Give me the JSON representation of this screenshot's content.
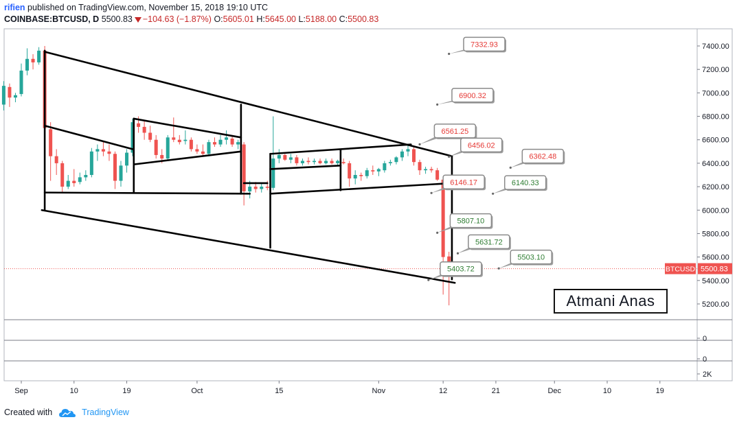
{
  "header": {
    "user": "rifien",
    "published_text": "published on TradingView.com, November 15, 2018 19:10 UTC",
    "symbol": "COINBASE:BTCUSD, D",
    "last": "5500.83",
    "change": "−104.63 (−1.87%)",
    "o_label": "O:",
    "o_value": "5605.01",
    "h_label": "H:",
    "h_value": "5645.00",
    "l_label": "L:",
    "l_value": "5188.00",
    "c_label": "C:",
    "c_value": "5500.83"
  },
  "footer": {
    "created_with": "Created with",
    "brand": "TradingView"
  },
  "watermark": "Atmani Anas",
  "colors": {
    "up": "#26a69a",
    "down": "#ef5350",
    "label_red": "#e53935",
    "label_green": "#2e7d32",
    "price_tag": "#ef5350"
  },
  "chart_data": {
    "type": "candlestick",
    "ylim": [
      5100,
      7500
    ],
    "price_ticks": [
      "5200.00",
      "5400.00",
      "5600.00",
      "5800.00",
      "6000.00",
      "6200.00",
      "6400.00",
      "6600.00",
      "6800.00",
      "7000.00",
      "7200.00",
      "7400.00"
    ],
    "price_tag": {
      "symbol": "BTCUSD",
      "value": "5500.83",
      "price": 5500.83
    },
    "x_ticks": [
      {
        "label": "Sep",
        "day": 0
      },
      {
        "label": "10",
        "day": 9
      },
      {
        "label": "19",
        "day": 18
      },
      {
        "label": "Oct",
        "day": 30
      },
      {
        "label": "15",
        "day": 44
      },
      {
        "label": "Nov",
        "day": 61
      },
      {
        "label": "12",
        "day": 72
      },
      {
        "label": "21",
        "day": 81
      },
      {
        "label": "Dec",
        "day": 91
      },
      {
        "label": "10",
        "day": 100
      },
      {
        "label": "19",
        "day": 109
      }
    ],
    "sub_panel_labels": [
      "0",
      "0",
      "2K"
    ],
    "candles": [
      {
        "day": -3,
        "o": 6900,
        "h": 7100,
        "l": 6850,
        "c": 7060
      },
      {
        "day": -2,
        "o": 7050,
        "h": 7080,
        "l": 6880,
        "c": 6960
      },
      {
        "day": -1,
        "o": 6960,
        "h": 7000,
        "l": 6920,
        "c": 6980
      },
      {
        "day": 0,
        "o": 6990,
        "h": 7250,
        "l": 6970,
        "c": 7190
      },
      {
        "day": 1,
        "o": 7190,
        "h": 7380,
        "l": 7150,
        "c": 7290
      },
      {
        "day": 2,
        "o": 7290,
        "h": 7330,
        "l": 7200,
        "c": 7260
      },
      {
        "day": 3,
        "o": 7260,
        "h": 7390,
        "l": 7240,
        "c": 7360
      },
      {
        "day": 4,
        "o": 7360,
        "h": 7400,
        "l": 6650,
        "c": 6700
      },
      {
        "day": 5,
        "o": 6690,
        "h": 6750,
        "l": 6250,
        "c": 6460
      },
      {
        "day": 6,
        "o": 6460,
        "h": 6520,
        "l": 6300,
        "c": 6400
      },
      {
        "day": 7,
        "o": 6400,
        "h": 6420,
        "l": 6150,
        "c": 6200
      },
      {
        "day": 8,
        "o": 6200,
        "h": 6300,
        "l": 6180,
        "c": 6250
      },
      {
        "day": 9,
        "o": 6250,
        "h": 6350,
        "l": 6200,
        "c": 6230
      },
      {
        "day": 10,
        "o": 6240,
        "h": 6320,
        "l": 6220,
        "c": 6280
      },
      {
        "day": 11,
        "o": 6280,
        "h": 6340,
        "l": 6250,
        "c": 6300
      },
      {
        "day": 12,
        "o": 6300,
        "h": 6530,
        "l": 6280,
        "c": 6500
      },
      {
        "day": 13,
        "o": 6500,
        "h": 6560,
        "l": 6420,
        "c": 6520
      },
      {
        "day": 14,
        "o": 6520,
        "h": 6580,
        "l": 6460,
        "c": 6500
      },
      {
        "day": 15,
        "o": 6500,
        "h": 6560,
        "l": 6420,
        "c": 6480
      },
      {
        "day": 16,
        "o": 6480,
        "h": 6500,
        "l": 6180,
        "c": 6250
      },
      {
        "day": 17,
        "o": 6250,
        "h": 6420,
        "l": 6200,
        "c": 6380
      },
      {
        "day": 18,
        "o": 6380,
        "h": 6520,
        "l": 6320,
        "c": 6490
      },
      {
        "day": 19,
        "o": 6490,
        "h": 6780,
        "l": 6460,
        "c": 6750
      },
      {
        "day": 20,
        "o": 6740,
        "h": 6800,
        "l": 6660,
        "c": 6710
      },
      {
        "day": 21,
        "o": 6710,
        "h": 6760,
        "l": 6600,
        "c": 6660
      },
      {
        "day": 22,
        "o": 6660,
        "h": 6720,
        "l": 6580,
        "c": 6600
      },
      {
        "day": 23,
        "o": 6600,
        "h": 6640,
        "l": 6440,
        "c": 6470
      },
      {
        "day": 24,
        "o": 6470,
        "h": 6520,
        "l": 6400,
        "c": 6440
      },
      {
        "day": 25,
        "o": 6440,
        "h": 6640,
        "l": 6420,
        "c": 6620
      },
      {
        "day": 26,
        "o": 6620,
        "h": 6790,
        "l": 6580,
        "c": 6600
      },
      {
        "day": 27,
        "o": 6600,
        "h": 6640,
        "l": 6560,
        "c": 6580
      },
      {
        "day": 28,
        "o": 6590,
        "h": 6680,
        "l": 6560,
        "c": 6600
      },
      {
        "day": 29,
        "o": 6600,
        "h": 6620,
        "l": 6500,
        "c": 6520
      },
      {
        "day": 30,
        "o": 6520,
        "h": 6560,
        "l": 6480,
        "c": 6500
      },
      {
        "day": 31,
        "o": 6500,
        "h": 6560,
        "l": 6460,
        "c": 6480
      },
      {
        "day": 32,
        "o": 6480,
        "h": 6600,
        "l": 6460,
        "c": 6580
      },
      {
        "day": 33,
        "o": 6580,
        "h": 6620,
        "l": 6540,
        "c": 6560
      },
      {
        "day": 34,
        "o": 6560,
        "h": 6640,
        "l": 6540,
        "c": 6600
      },
      {
        "day": 35,
        "o": 6600,
        "h": 6680,
        "l": 6560,
        "c": 6620
      },
      {
        "day": 36,
        "o": 6610,
        "h": 6640,
        "l": 6540,
        "c": 6560
      },
      {
        "day": 37,
        "o": 6560,
        "h": 6600,
        "l": 6520,
        "c": 6580
      },
      {
        "day": 38,
        "o": 6560,
        "h": 6580,
        "l": 6040,
        "c": 6160
      },
      {
        "day": 39,
        "o": 6160,
        "h": 6250,
        "l": 6100,
        "c": 6200
      },
      {
        "day": 40,
        "o": 6200,
        "h": 6240,
        "l": 6150,
        "c": 6180
      },
      {
        "day": 41,
        "o": 6180,
        "h": 6230,
        "l": 6150,
        "c": 6200
      },
      {
        "day": 42,
        "o": 6200,
        "h": 6250,
        "l": 6170,
        "c": 6190
      },
      {
        "day": 43,
        "o": 6190,
        "h": 6800,
        "l": 6170,
        "c": 6440
      },
      {
        "day": 44,
        "o": 6440,
        "h": 6520,
        "l": 6400,
        "c": 6470
      },
      {
        "day": 45,
        "o": 6470,
        "h": 6480,
        "l": 6420,
        "c": 6430
      },
      {
        "day": 46,
        "o": 6430,
        "h": 6480,
        "l": 6400,
        "c": 6450
      },
      {
        "day": 47,
        "o": 6450,
        "h": 6470,
        "l": 6380,
        "c": 6400
      },
      {
        "day": 48,
        "o": 6400,
        "h": 6440,
        "l": 6380,
        "c": 6420
      },
      {
        "day": 49,
        "o": 6420,
        "h": 6450,
        "l": 6390,
        "c": 6410
      },
      {
        "day": 50,
        "o": 6410,
        "h": 6440,
        "l": 6390,
        "c": 6420
      },
      {
        "day": 51,
        "o": 6420,
        "h": 6440,
        "l": 6390,
        "c": 6400
      },
      {
        "day": 52,
        "o": 6400,
        "h": 6440,
        "l": 6390,
        "c": 6420
      },
      {
        "day": 53,
        "o": 6420,
        "h": 6440,
        "l": 6390,
        "c": 6400
      },
      {
        "day": 54,
        "o": 6400,
        "h": 6430,
        "l": 6380,
        "c": 6420
      },
      {
        "day": 55,
        "o": 6410,
        "h": 6440,
        "l": 6390,
        "c": 6400
      },
      {
        "day": 56,
        "o": 6400,
        "h": 6420,
        "l": 6200,
        "c": 6270
      },
      {
        "day": 57,
        "o": 6270,
        "h": 6340,
        "l": 6220,
        "c": 6300
      },
      {
        "day": 58,
        "o": 6300,
        "h": 6320,
        "l": 6250,
        "c": 6290
      },
      {
        "day": 59,
        "o": 6290,
        "h": 6360,
        "l": 6270,
        "c": 6340
      },
      {
        "day": 60,
        "o": 6340,
        "h": 6380,
        "l": 6300,
        "c": 6330
      },
      {
        "day": 61,
        "o": 6330,
        "h": 6360,
        "l": 6290,
        "c": 6350
      },
      {
        "day": 62,
        "o": 6340,
        "h": 6420,
        "l": 6320,
        "c": 6400
      },
      {
        "day": 63,
        "o": 6400,
        "h": 6430,
        "l": 6380,
        "c": 6410
      },
      {
        "day": 64,
        "o": 6410,
        "h": 6460,
        "l": 6390,
        "c": 6450
      },
      {
        "day": 65,
        "o": 6450,
        "h": 6520,
        "l": 6420,
        "c": 6500
      },
      {
        "day": 66,
        "o": 6500,
        "h": 6560,
        "l": 6460,
        "c": 6520
      },
      {
        "day": 67,
        "o": 6520,
        "h": 6550,
        "l": 6380,
        "c": 6410
      },
      {
        "day": 68,
        "o": 6410,
        "h": 6430,
        "l": 6300,
        "c": 6340
      },
      {
        "day": 69,
        "o": 6340,
        "h": 6370,
        "l": 6310,
        "c": 6350
      },
      {
        "day": 70,
        "o": 6350,
        "h": 6370,
        "l": 6320,
        "c": 6340
      },
      {
        "day": 71,
        "o": 6340,
        "h": 6360,
        "l": 6250,
        "c": 6260
      },
      {
        "day": 72,
        "o": 6260,
        "h": 6270,
        "l": 5280,
        "c": 5600
      },
      {
        "day": 73,
        "o": 5605.01,
        "h": 5645,
        "l": 5188,
        "c": 5500.83
      }
    ],
    "price_labels": [
      {
        "text": "7332.93",
        "color": "red",
        "ax": 73.0,
        "ap": 7332.93,
        "bx": 75.5,
        "bp": 7415
      },
      {
        "text": "6900.32",
        "color": "red",
        "ax": 71.0,
        "ap": 6900.32,
        "bx": 73.5,
        "bp": 6980
      },
      {
        "text": "6561.25",
        "color": "red",
        "ax": 68.0,
        "ap": 6561.25,
        "bx": 70.5,
        "bp": 6675
      },
      {
        "text": "6456.02",
        "color": "red",
        "ax": 73.0,
        "ap": 6456.02,
        "bx": 75.0,
        "bp": 6555
      },
      {
        "text": "6362.48",
        "color": "red",
        "ax": 83.5,
        "ap": 6362.48,
        "bx": 85.5,
        "bp": 6460
      },
      {
        "text": "6146.17",
        "color": "red",
        "ax": 70.0,
        "ap": 6146.17,
        "bx": 72.0,
        "bp": 6240
      },
      {
        "text": "6140.33",
        "color": "green",
        "ax": 80.5,
        "ap": 6140.33,
        "bx": 82.5,
        "bp": 6235
      },
      {
        "text": "5807.10",
        "color": "green",
        "ax": 71.0,
        "ap": 5807.1,
        "bx": 73.2,
        "bp": 5910
      },
      {
        "text": "5631.72",
        "color": "green",
        "ax": 74.5,
        "ap": 5631.72,
        "bx": 76.3,
        "bp": 5730
      },
      {
        "text": "5503.10",
        "color": "green",
        "ax": 81.5,
        "ap": 5503.1,
        "bx": 83.5,
        "bp": 5600
      },
      {
        "text": "5403.72",
        "color": "green",
        "ax": 69.5,
        "ap": 5403.72,
        "bx": 71.5,
        "bp": 5500
      }
    ],
    "trendlines": [
      {
        "x1": 4,
        "y1": 7350,
        "x2": 73.5,
        "y2": 6460
      },
      {
        "x1": 3.5,
        "y1": 6000,
        "x2": 74,
        "y2": 5380
      },
      {
        "x1": 4,
        "y1": 6720,
        "x2": 19,
        "y2": 6520
      },
      {
        "x1": 4,
        "y1": 6150,
        "x2": 39,
        "y2": 6140
      },
      {
        "x1": 4,
        "y1": 7360,
        "x2": 4,
        "y2": 6000
      },
      {
        "x1": 19.2,
        "y1": 6780,
        "x2": 37.5,
        "y2": 6620
      },
      {
        "x1": 19.2,
        "y1": 6390,
        "x2": 37.5,
        "y2": 6500
      },
      {
        "x1": 19.2,
        "y1": 6780,
        "x2": 19.2,
        "y2": 6150
      },
      {
        "x1": 37.5,
        "y1": 6900,
        "x2": 37.5,
        "y2": 6140
      },
      {
        "x1": 38,
        "y1": 6230,
        "x2": 42,
        "y2": 6230
      },
      {
        "x1": 42.5,
        "y1": 6480,
        "x2": 66.5,
        "y2": 6560
      },
      {
        "x1": 42.5,
        "y1": 6350,
        "x2": 54.5,
        "y2": 6380
      },
      {
        "x1": 42.5,
        "y1": 6140,
        "x2": 73.5,
        "y2": 6230
      },
      {
        "x1": 42.5,
        "y1": 6480,
        "x2": 42.5,
        "y2": 5680
      },
      {
        "x1": 54.5,
        "y1": 6510,
        "x2": 54.5,
        "y2": 6170
      },
      {
        "x1": 73.5,
        "y1": 6460,
        "x2": 73.5,
        "y2": 5410
      }
    ]
  }
}
